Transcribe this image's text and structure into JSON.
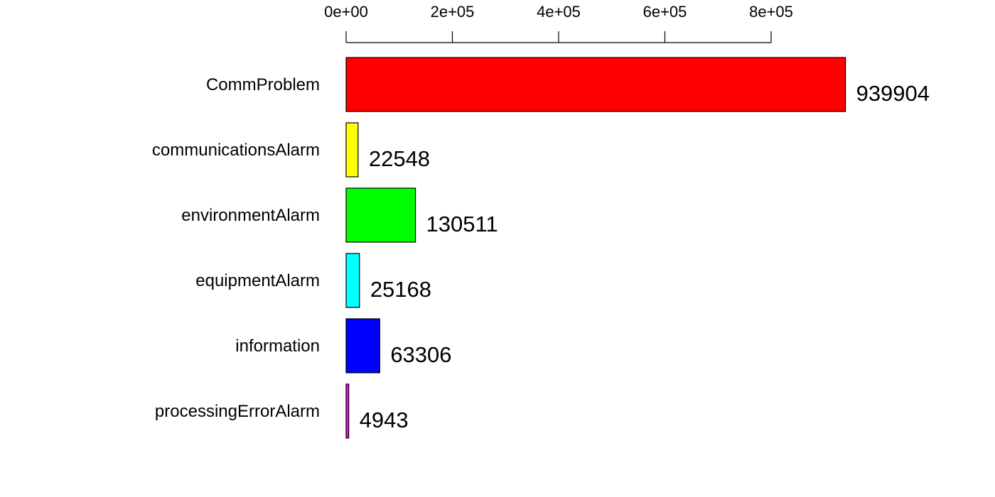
{
  "chart_data": {
    "type": "bar",
    "orientation": "horizontal",
    "axis_position": "top",
    "categories": [
      "CommProblem",
      "communicationsAlarm",
      "environmentAlarm",
      "equipmentAlarm",
      "information",
      "processingErrorAlarm"
    ],
    "values": [
      939904,
      22548,
      130511,
      25168,
      63306,
      4943
    ],
    "value_labels": [
      "939904",
      "22548",
      "130511",
      "25168",
      "63306",
      "4943"
    ],
    "colors": [
      "#FF0000",
      "#FFFF00",
      "#00FF00",
      "#00FFFF",
      "#0000FF",
      "#FF00FF"
    ],
    "xticks": [
      0,
      200000,
      400000,
      600000,
      800000
    ],
    "xtick_labels": [
      "0e+00",
      "2e+05",
      "4e+05",
      "6e+05",
      "8e+05"
    ],
    "xlim": [
      0,
      939904
    ],
    "title": "",
    "xlabel": "",
    "ylabel": "",
    "grid": false,
    "legend": false
  }
}
